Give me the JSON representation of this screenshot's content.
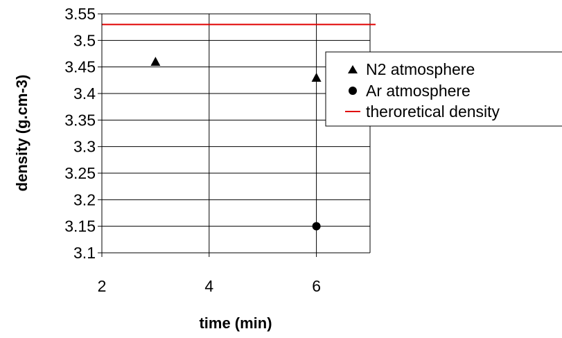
{
  "chart_data": {
    "type": "scatter",
    "title": "",
    "xlabel": "time (min)",
    "ylabel": "density (g.cm-3)",
    "xlim": [
      2,
      7
    ],
    "ylim": [
      3.1,
      3.55
    ],
    "x_ticks": [
      2,
      4,
      6
    ],
    "y_ticks": [
      3.1,
      3.15,
      3.2,
      3.25,
      3.3,
      3.35,
      3.4,
      3.45,
      3.5,
      3.55
    ],
    "x_tick_labels": [
      "2",
      "4",
      "6"
    ],
    "y_tick_labels": [
      "3.1",
      "3.15",
      "3.2",
      "3.25",
      "3.3",
      "3.35",
      "3.4",
      "3.45",
      "3.5",
      "3.55"
    ],
    "grid": "both",
    "legend_position": "right",
    "series": [
      {
        "name": "N2 atmosphere",
        "marker": "triangle",
        "color": "#000000",
        "points": [
          {
            "x": 3,
            "y": 3.46
          },
          {
            "x": 6,
            "y": 3.43
          }
        ]
      },
      {
        "name": "Ar atmosphere",
        "marker": "circle",
        "color": "#000000",
        "points": [
          {
            "x": 6,
            "y": 3.15
          }
        ]
      },
      {
        "name": "theroretical density",
        "marker": "line",
        "color": "#e00000",
        "y": 3.53
      }
    ]
  }
}
